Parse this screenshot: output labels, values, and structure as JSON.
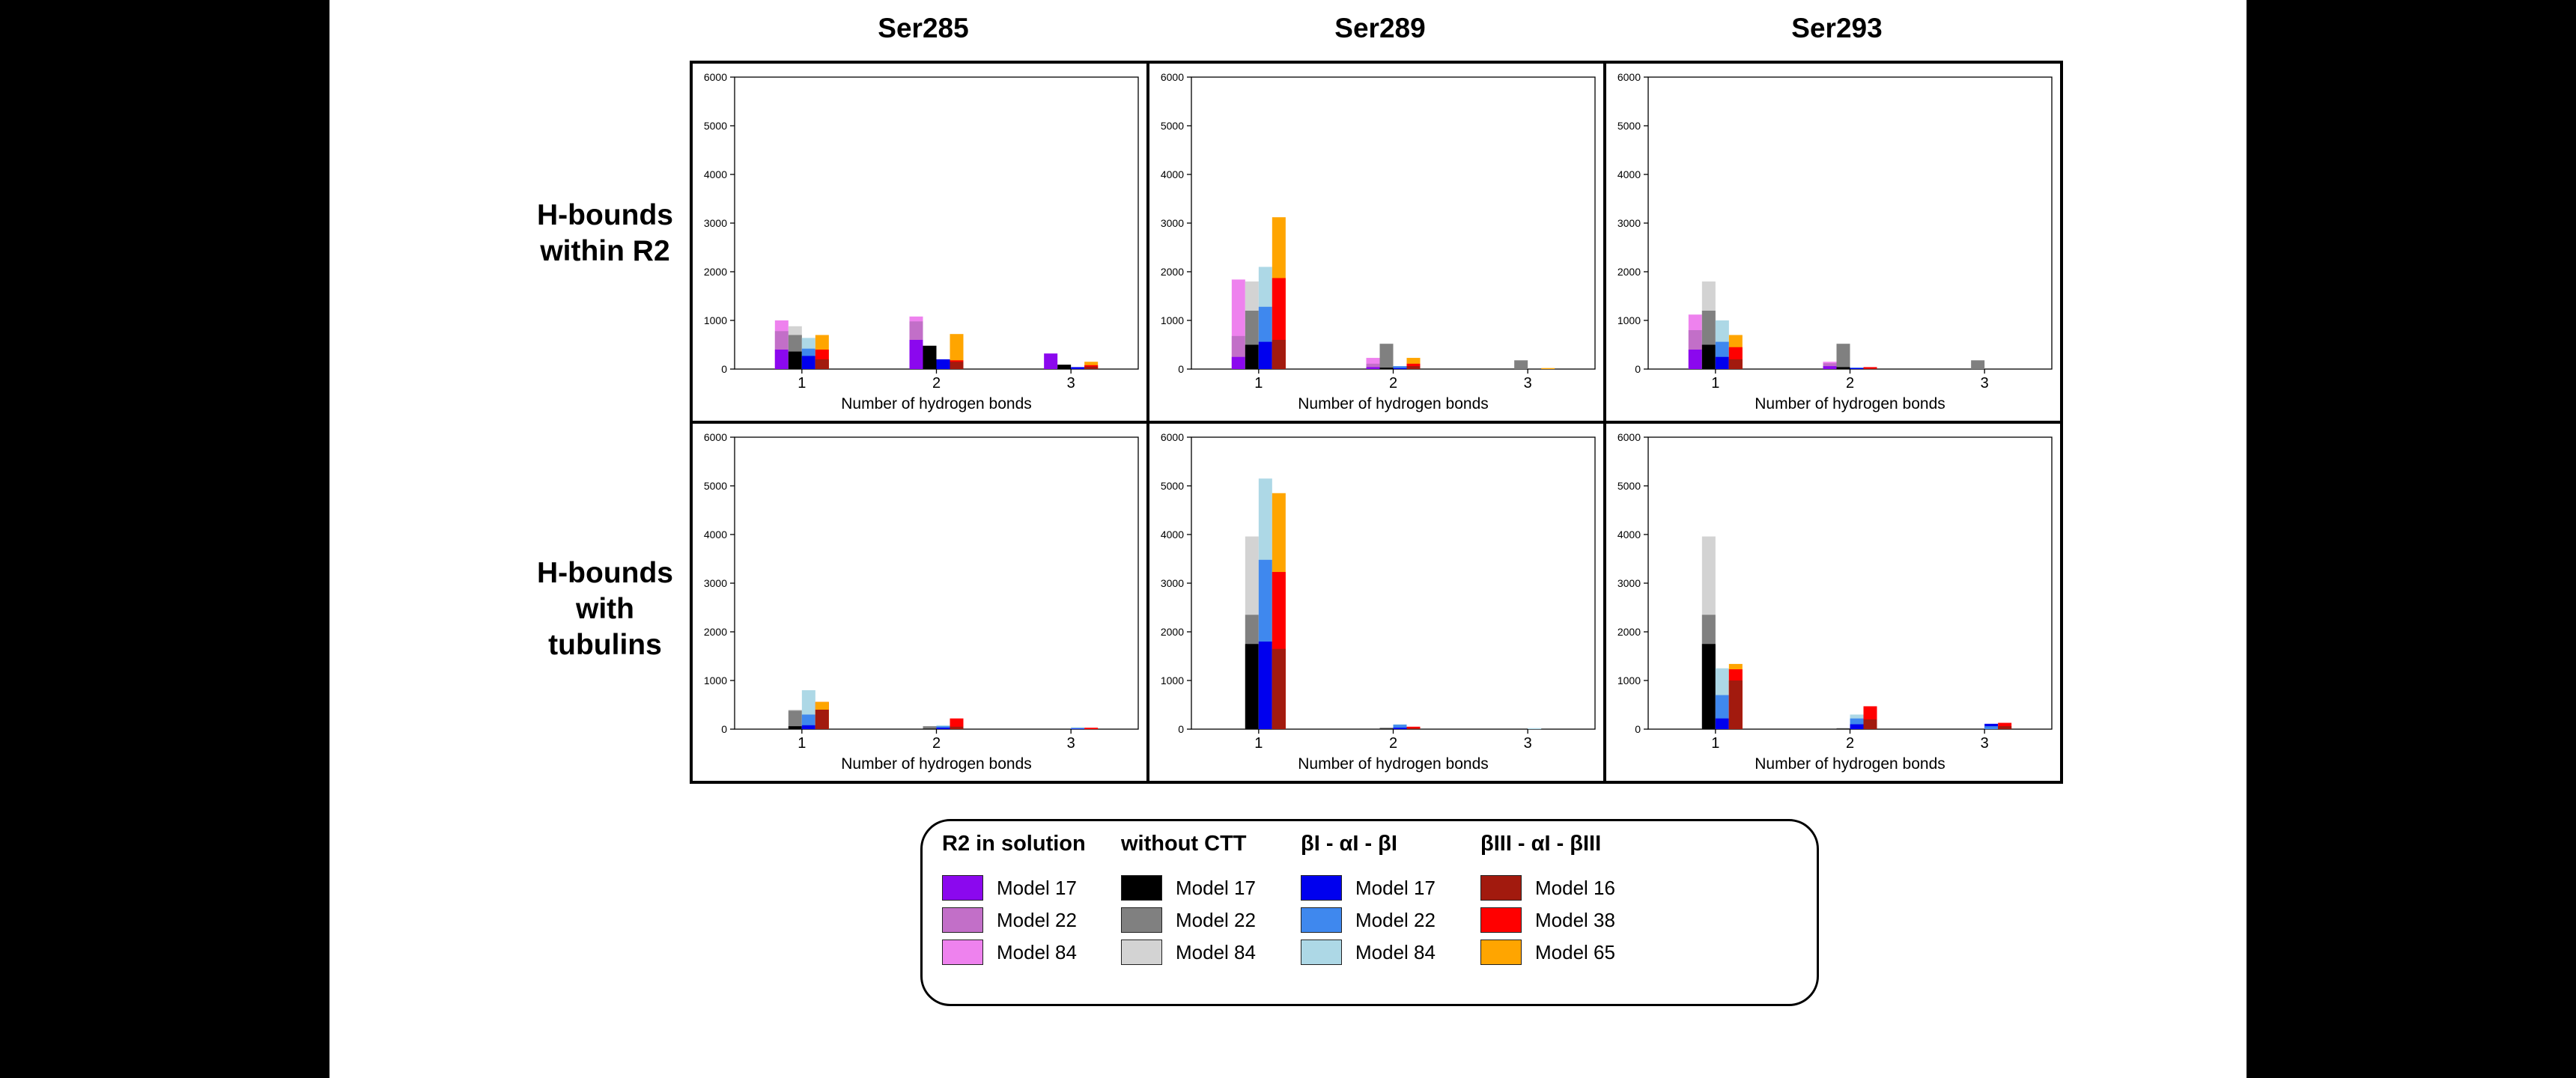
{
  "colors": {
    "r2_m17": "#8B08EE",
    "r2_m22": "#C26FC8",
    "r2_m84": "#EE82EE",
    "nc_m17": "#000000",
    "nc_m22": "#808080",
    "nc_m84": "#D3D3D3",
    "bI_m17": "#0000EE",
    "bI_m22": "#3F88EE",
    "bI_m84": "#ADD8E6",
    "bIII_m16": "#A21A0E",
    "bIII_m38": "#FF0000",
    "bIII_m65": "#FFA500"
  },
  "column_titles": [
    "Ser285",
    "Ser289",
    "Ser293"
  ],
  "row_titles": [
    [
      "H-bounds",
      "within R2"
    ],
    [
      "H-bounds",
      "with",
      "tubulins"
    ]
  ],
  "legend": {
    "groups": [
      {
        "title": "R2 in solution",
        "items": [
          {
            "label": "Model 17",
            "color": "r2_m17"
          },
          {
            "label": "Model 22",
            "color": "r2_m22"
          },
          {
            "label": "Model 84",
            "color": "r2_m84"
          }
        ]
      },
      {
        "title": "without CTT",
        "items": [
          {
            "label": "Model 17",
            "color": "nc_m17"
          },
          {
            "label": "Model 22",
            "color": "nc_m22"
          },
          {
            "label": "Model 84",
            "color": "nc_m84"
          }
        ]
      },
      {
        "title": "βI - αI - βI",
        "items": [
          {
            "label": "Model 17",
            "color": "bI_m17"
          },
          {
            "label": "Model 22",
            "color": "bI_m22"
          },
          {
            "label": "Model 84",
            "color": "bI_m84"
          }
        ]
      },
      {
        "title": "βIII - αI - βIII",
        "items": [
          {
            "label": "Model 16",
            "color": "bIII_m16"
          },
          {
            "label": "Model 38",
            "color": "bIII_m38"
          },
          {
            "label": "Model 65",
            "color": "bIII_m65"
          }
        ]
      }
    ]
  },
  "chart_data": [
    {
      "type": "bar",
      "row": 0,
      "col": 0,
      "xlabel": "Number of hydrogen bonds",
      "x": [
        1,
        2,
        3
      ],
      "ylim": [
        0,
        6000
      ],
      "yticks": [
        0,
        1000,
        2000,
        3000,
        4000,
        5000,
        6000
      ],
      "groups": [
        {
          "name": "R2 in solution",
          "layers": [
            {
              "color": "r2_m17",
              "values": [
                400,
                600,
                320
              ]
            },
            {
              "color": "r2_m22",
              "values": [
                780,
                980,
                0
              ]
            },
            {
              "color": "r2_m84",
              "values": [
                1000,
                1080,
                0
              ]
            }
          ]
        },
        {
          "name": "without CTT",
          "layers": [
            {
              "color": "nc_m17",
              "values": [
                360,
                480,
                90
              ]
            },
            {
              "color": "nc_m22",
              "values": [
                700,
                0,
                0
              ]
            },
            {
              "color": "nc_m84",
              "values": [
                880,
                0,
                0
              ]
            }
          ]
        },
        {
          "name": "βI - αI - βI",
          "layers": [
            {
              "color": "bI_m17",
              "values": [
                270,
                200,
                40
              ]
            },
            {
              "color": "bI_m22",
              "values": [
                420,
                0,
                0
              ]
            },
            {
              "color": "bI_m84",
              "values": [
                640,
                0,
                0
              ]
            }
          ]
        },
        {
          "name": "βIII - αI - βIII",
          "layers": [
            {
              "color": "bIII_m16",
              "values": [
                200,
                150,
                50
              ]
            },
            {
              "color": "bIII_m38",
              "values": [
                400,
                180,
                80
              ]
            },
            {
              "color": "bIII_m65",
              "values": [
                700,
                720,
                150
              ]
            }
          ]
        }
      ]
    },
    {
      "type": "bar",
      "row": 0,
      "col": 1,
      "xlabel": "Number of hydrogen bonds",
      "x": [
        1,
        2,
        3
      ],
      "ylim": [
        0,
        6000
      ],
      "yticks": [
        0,
        1000,
        2000,
        3000,
        4000,
        5000,
        6000
      ],
      "groups": [
        {
          "name": "R2 in solution",
          "layers": [
            {
              "color": "r2_m17",
              "values": [
                250,
                40,
                0
              ]
            },
            {
              "color": "r2_m22",
              "values": [
                680,
                110,
                0
              ]
            },
            {
              "color": "r2_m84",
              "values": [
                1840,
                230,
                0
              ]
            }
          ]
        },
        {
          "name": "without CTT",
          "layers": [
            {
              "color": "nc_m17",
              "values": [
                500,
                30,
                0
              ]
            },
            {
              "color": "nc_m22",
              "values": [
                1200,
                520,
                180
              ]
            },
            {
              "color": "nc_m84",
              "values": [
                1800,
                0,
                0
              ]
            }
          ]
        },
        {
          "name": "βI - αI - βI",
          "layers": [
            {
              "color": "bI_m17",
              "values": [
                560,
                20,
                0
              ]
            },
            {
              "color": "bI_m22",
              "values": [
                1280,
                60,
                0
              ]
            },
            {
              "color": "bI_m84",
              "values": [
                2100,
                0,
                0
              ]
            }
          ]
        },
        {
          "name": "βIII - αI - βIII",
          "layers": [
            {
              "color": "bIII_m16",
              "values": [
                600,
                60,
                0
              ]
            },
            {
              "color": "bIII_m38",
              "values": [
                1870,
                110,
                0
              ]
            },
            {
              "color": "bIII_m65",
              "values": [
                3120,
                230,
                20
              ]
            }
          ]
        }
      ]
    },
    {
      "type": "bar",
      "row": 0,
      "col": 2,
      "xlabel": "Number of hydrogen bonds",
      "x": [
        1,
        2,
        3
      ],
      "ylim": [
        0,
        6000
      ],
      "yticks": [
        0,
        1000,
        2000,
        3000,
        4000,
        5000,
        6000
      ],
      "groups": [
        {
          "name": "R2 in solution",
          "layers": [
            {
              "color": "r2_m17",
              "values": [
                400,
                60,
                0
              ]
            },
            {
              "color": "r2_m22",
              "values": [
                800,
                120,
                0
              ]
            },
            {
              "color": "r2_m84",
              "values": [
                1120,
                150,
                0
              ]
            }
          ]
        },
        {
          "name": "without CTT",
          "layers": [
            {
              "color": "nc_m17",
              "values": [
                500,
                40,
                0
              ]
            },
            {
              "color": "nc_m22",
              "values": [
                1200,
                520,
                180
              ]
            },
            {
              "color": "nc_m84",
              "values": [
                1800,
                0,
                0
              ]
            }
          ]
        },
        {
          "name": "βI - αI - βI",
          "layers": [
            {
              "color": "bI_m17",
              "values": [
                250,
                20,
                0
              ]
            },
            {
              "color": "bI_m22",
              "values": [
                560,
                30,
                0
              ]
            },
            {
              "color": "bI_m84",
              "values": [
                1000,
                0,
                0
              ]
            }
          ]
        },
        {
          "name": "βIII - αI - βIII",
          "layers": [
            {
              "color": "bIII_m16",
              "values": [
                200,
                10,
                0
              ]
            },
            {
              "color": "bIII_m38",
              "values": [
                450,
                40,
                0
              ]
            },
            {
              "color": "bIII_m65",
              "values": [
                700,
                0,
                0
              ]
            }
          ]
        }
      ]
    },
    {
      "type": "bar",
      "row": 1,
      "col": 0,
      "xlabel": "Number of hydrogen bonds",
      "x": [
        1,
        2,
        3
      ],
      "ylim": [
        0,
        6000
      ],
      "yticks": [
        0,
        1000,
        2000,
        3000,
        4000,
        5000,
        6000
      ],
      "groups": [
        {
          "name": "R2 in solution",
          "layers": [
            {
              "color": "r2_m17",
              "values": [
                0,
                0,
                0
              ]
            },
            {
              "color": "r2_m22",
              "values": [
                0,
                0,
                0
              ]
            },
            {
              "color": "r2_m84",
              "values": [
                0,
                0,
                0
              ]
            }
          ]
        },
        {
          "name": "without CTT",
          "layers": [
            {
              "color": "nc_m17",
              "values": [
                60,
                10,
                0
              ]
            },
            {
              "color": "nc_m22",
              "values": [
                380,
                60,
                0
              ]
            },
            {
              "color": "nc_m84",
              "values": [
                400,
                0,
                0
              ]
            }
          ]
        },
        {
          "name": "βI - αI - βI",
          "layers": [
            {
              "color": "bI_m17",
              "values": [
                80,
                30,
                10
              ]
            },
            {
              "color": "bI_m22",
              "values": [
                300,
                60,
                20
              ]
            },
            {
              "color": "bI_m84",
              "values": [
                800,
                80,
                40
              ]
            }
          ]
        },
        {
          "name": "βIII - αI - βIII",
          "layers": [
            {
              "color": "bIII_m16",
              "values": [
                400,
                50,
                0
              ]
            },
            {
              "color": "bIII_m38",
              "values": [
                560,
                220,
                30
              ]
            },
            {
              "color": "bIII_m65",
              "values": [
                560,
                0,
                0
              ]
            }
          ]
        }
      ]
    },
    {
      "type": "bar",
      "row": 1,
      "col": 1,
      "xlabel": "Number of hydrogen bonds",
      "x": [
        1,
        2,
        3
      ],
      "ylim": [
        0,
        6000
      ],
      "yticks": [
        0,
        1000,
        2000,
        3000,
        4000,
        5000,
        6000
      ],
      "groups": [
        {
          "name": "R2 in solution",
          "layers": [
            {
              "color": "r2_m17",
              "values": [
                0,
                0,
                0
              ]
            },
            {
              "color": "r2_m22",
              "values": [
                0,
                0,
                0
              ]
            },
            {
              "color": "r2_m84",
              "values": [
                0,
                0,
                0
              ]
            }
          ]
        },
        {
          "name": "without CTT",
          "layers": [
            {
              "color": "nc_m17",
              "values": [
                1750,
                10,
                0
              ]
            },
            {
              "color": "nc_m22",
              "values": [
                2350,
                30,
                0
              ]
            },
            {
              "color": "nc_m84",
              "values": [
                3960,
                0,
                0
              ]
            }
          ]
        },
        {
          "name": "βI - αI - βI",
          "layers": [
            {
              "color": "bI_m17",
              "values": [
                1800,
                30,
                0
              ]
            },
            {
              "color": "bI_m22",
              "values": [
                3480,
                90,
                0
              ]
            },
            {
              "color": "bI_m84",
              "values": [
                5150,
                100,
                20
              ]
            }
          ]
        },
        {
          "name": "βIII - αI - βIII",
          "layers": [
            {
              "color": "bIII_m16",
              "values": [
                1650,
                20,
                0
              ]
            },
            {
              "color": "bIII_m38",
              "values": [
                3230,
                50,
                0
              ]
            },
            {
              "color": "bIII_m65",
              "values": [
                4850,
                0,
                0
              ]
            }
          ]
        }
      ]
    },
    {
      "type": "bar",
      "row": 1,
      "col": 2,
      "xlabel": "Number of hydrogen bonds",
      "x": [
        1,
        2,
        3
      ],
      "ylim": [
        0,
        6000
      ],
      "yticks": [
        0,
        1000,
        2000,
        3000,
        4000,
        5000,
        6000
      ],
      "groups": [
        {
          "name": "R2 in solution",
          "layers": [
            {
              "color": "r2_m17",
              "values": [
                0,
                0,
                0
              ]
            },
            {
              "color": "r2_m22",
              "values": [
                0,
                0,
                0
              ]
            },
            {
              "color": "r2_m84",
              "values": [
                0,
                0,
                0
              ]
            }
          ]
        },
        {
          "name": "without CTT",
          "layers": [
            {
              "color": "nc_m17",
              "values": [
                1750,
                10,
                0
              ]
            },
            {
              "color": "nc_m22",
              "values": [
                2350,
                20,
                0
              ]
            },
            {
              "color": "nc_m84",
              "values": [
                3960,
                0,
                0
              ]
            }
          ]
        },
        {
          "name": "βI - αI - βI",
          "layers": [
            {
              "color": "bI_m17",
              "values": [
                220,
                100,
                110
              ]
            },
            {
              "color": "bI_m22",
              "values": [
                700,
                220,
                60
              ]
            },
            {
              "color": "bI_m84",
              "values": [
                1250,
                300,
                0
              ]
            }
          ]
        },
        {
          "name": "βIII - αI - βIII",
          "layers": [
            {
              "color": "bIII_m16",
              "values": [
                1000,
                200,
                60
              ]
            },
            {
              "color": "bIII_m38",
              "values": [
                1230,
                470,
                130
              ]
            },
            {
              "color": "bIII_m65",
              "values": [
                1340,
                0,
                0
              ]
            }
          ]
        }
      ]
    }
  ]
}
